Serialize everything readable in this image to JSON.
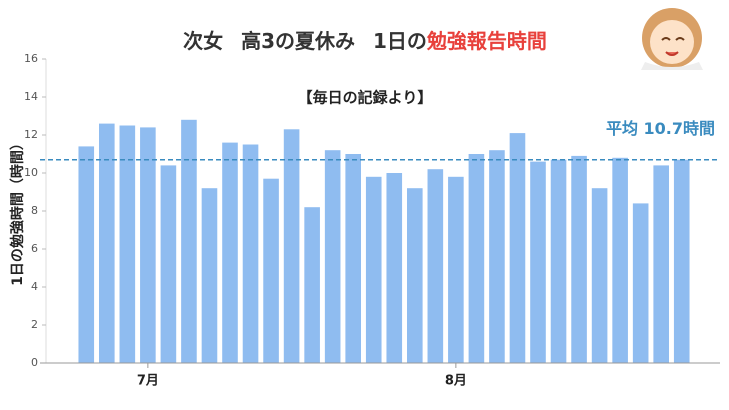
{
  "chart_data": {
    "type": "bar",
    "title_parts": [
      {
        "text": "次女",
        "color": "#333333"
      },
      {
        "text": "高3の夏休み",
        "color": "#333333"
      },
      {
        "text": "1日の",
        "color": "#333333"
      },
      {
        "text": "勉強報告時間",
        "color": "#e8413c"
      }
    ],
    "subtitle": "【毎日の記録より】",
    "y_label": "1日の勉強時間（時間）",
    "categories": [
      null,
      null,
      null,
      "7月",
      null,
      null,
      null,
      null,
      null,
      null,
      null,
      null,
      null,
      null,
      null,
      null,
      null,
      null,
      "8月",
      null,
      null,
      null,
      null,
      null,
      null,
      null,
      null,
      null,
      null,
      null
    ],
    "values": [
      11.4,
      12.6,
      12.5,
      12.4,
      10.4,
      12.8,
      9.2,
      11.6,
      11.5,
      9.7,
      12.3,
      8.2,
      11.2,
      11.0,
      9.8,
      10.0,
      9.2,
      10.2,
      9.8,
      11.0,
      11.2,
      12.1,
      10.6,
      10.7,
      10.9,
      9.2,
      10.8,
      8.4,
      10.4,
      10.7
    ],
    "color": "#8fbcf0",
    "ylim": [
      0,
      16
    ],
    "yticks": [
      0,
      2,
      4,
      6,
      8,
      10,
      12,
      14,
      16
    ],
    "average": {
      "value": 10.7,
      "label": "平均 10.7時間",
      "color": "#3a8bbf"
    }
  }
}
